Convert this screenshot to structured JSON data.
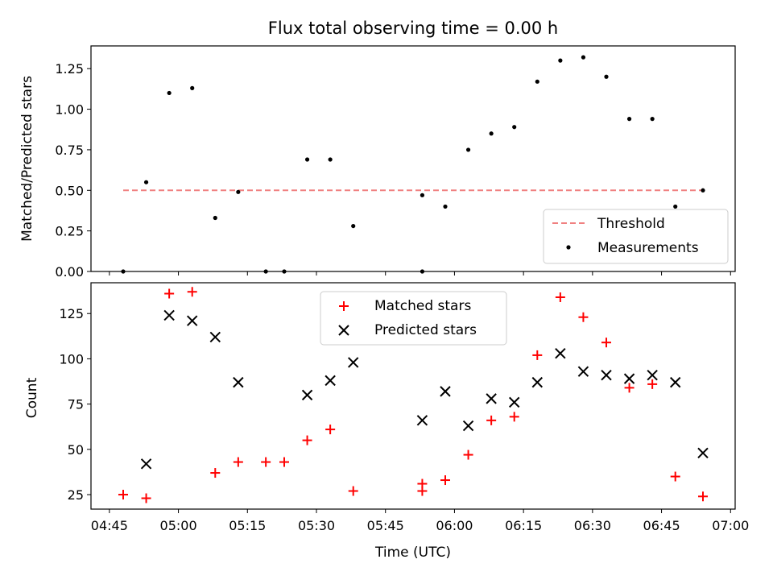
{
  "chart_data": [
    {
      "type": "scatter",
      "title": "Flux total observing time = 0.00 h",
      "xlabel": "",
      "ylabel": "Matched/Predicted stars",
      "xlim": [
        "04:41",
        "07:01"
      ],
      "ylim": [
        0,
        1.39
      ],
      "yticks": [
        "0.00",
        "0.25",
        "0.50",
        "0.75",
        "1.00",
        "1.25"
      ],
      "ytick_values": [
        0,
        0.25,
        0.5,
        0.75,
        1.0,
        1.25
      ],
      "legend": "lower-right",
      "threshold": {
        "name": "Threshold",
        "value": 0.5,
        "x": [
          "04:48",
          "06:54"
        ],
        "color": "#f08080",
        "style": "dashed"
      },
      "series": [
        {
          "name": "Measurements",
          "color": "#000000",
          "marker": "dot",
          "points": [
            {
              "x": "04:48",
              "y": 0.0
            },
            {
              "x": "04:53",
              "y": 0.55
            },
            {
              "x": "04:58",
              "y": 1.1
            },
            {
              "x": "05:03",
              "y": 1.13
            },
            {
              "x": "05:08",
              "y": 0.33
            },
            {
              "x": "05:13",
              "y": 0.49
            },
            {
              "x": "05:19",
              "y": 0.0
            },
            {
              "x": "05:23",
              "y": 0.0
            },
            {
              "x": "05:28",
              "y": 0.69
            },
            {
              "x": "05:33",
              "y": 0.69
            },
            {
              "x": "05:38",
              "y": 0.28
            },
            {
              "x": "05:53",
              "y": 0.0
            },
            {
              "x": "05:53",
              "y": 0.47
            },
            {
              "x": "05:58",
              "y": 0.4
            },
            {
              "x": "06:03",
              "y": 0.75
            },
            {
              "x": "06:08",
              "y": 0.85
            },
            {
              "x": "06:13",
              "y": 0.89
            },
            {
              "x": "06:18",
              "y": 1.17
            },
            {
              "x": "06:23",
              "y": 1.3
            },
            {
              "x": "06:28",
              "y": 1.32
            },
            {
              "x": "06:33",
              "y": 1.2
            },
            {
              "x": "06:38",
              "y": 0.94
            },
            {
              "x": "06:43",
              "y": 0.94
            },
            {
              "x": "06:48",
              "y": 0.4
            },
            {
              "x": "06:54",
              "y": 0.5
            }
          ]
        }
      ]
    },
    {
      "type": "scatter",
      "title": "",
      "xlabel": "Time (UTC)",
      "ylabel": "Count",
      "xlim": [
        "04:41",
        "07:01"
      ],
      "ylim": [
        17,
        142
      ],
      "xticks": [
        "04:45",
        "05:00",
        "05:15",
        "05:30",
        "05:45",
        "06:00",
        "06:15",
        "06:30",
        "06:45",
        "07:00"
      ],
      "yticks": [
        "25",
        "50",
        "75",
        "100",
        "125"
      ],
      "ytick_values": [
        25,
        50,
        75,
        100,
        125
      ],
      "legend": "top-center",
      "series": [
        {
          "name": "Matched stars",
          "color": "#ff0000",
          "marker": "plus",
          "points": [
            {
              "x": "04:48",
              "y": 25
            },
            {
              "x": "04:53",
              "y": 23
            },
            {
              "x": "04:58",
              "y": 136
            },
            {
              "x": "05:03",
              "y": 137
            },
            {
              "x": "05:08",
              "y": 37
            },
            {
              "x": "05:13",
              "y": 43
            },
            {
              "x": "05:19",
              "y": 43
            },
            {
              "x": "05:23",
              "y": 43
            },
            {
              "x": "05:28",
              "y": 55
            },
            {
              "x": "05:33",
              "y": 61
            },
            {
              "x": "05:38",
              "y": 27
            },
            {
              "x": "05:53",
              "y": 27
            },
            {
              "x": "05:53",
              "y": 31
            },
            {
              "x": "05:58",
              "y": 33
            },
            {
              "x": "06:03",
              "y": 47
            },
            {
              "x": "06:08",
              "y": 66
            },
            {
              "x": "06:13",
              "y": 68
            },
            {
              "x": "06:18",
              "y": 102
            },
            {
              "x": "06:23",
              "y": 134
            },
            {
              "x": "06:28",
              "y": 123
            },
            {
              "x": "06:33",
              "y": 109
            },
            {
              "x": "06:38",
              "y": 84
            },
            {
              "x": "06:43",
              "y": 86
            },
            {
              "x": "06:48",
              "y": 35
            },
            {
              "x": "06:54",
              "y": 24
            }
          ]
        },
        {
          "name": "Predicted stars",
          "color": "#000000",
          "marker": "x",
          "points": [
            {
              "x": "04:53",
              "y": 42
            },
            {
              "x": "04:58",
              "y": 124
            },
            {
              "x": "05:03",
              "y": 121
            },
            {
              "x": "05:08",
              "y": 112
            },
            {
              "x": "05:13",
              "y": 87
            },
            {
              "x": "05:28",
              "y": 80
            },
            {
              "x": "05:33",
              "y": 88
            },
            {
              "x": "05:38",
              "y": 98
            },
            {
              "x": "05:53",
              "y": 66
            },
            {
              "x": "05:58",
              "y": 82
            },
            {
              "x": "06:03",
              "y": 63
            },
            {
              "x": "06:08",
              "y": 78
            },
            {
              "x": "06:13",
              "y": 76
            },
            {
              "x": "06:18",
              "y": 87
            },
            {
              "x": "06:23",
              "y": 103
            },
            {
              "x": "06:28",
              "y": 93
            },
            {
              "x": "06:33",
              "y": 91
            },
            {
              "x": "06:38",
              "y": 89
            },
            {
              "x": "06:43",
              "y": 91
            },
            {
              "x": "06:48",
              "y": 87
            },
            {
              "x": "06:54",
              "y": 48
            }
          ]
        }
      ]
    }
  ]
}
